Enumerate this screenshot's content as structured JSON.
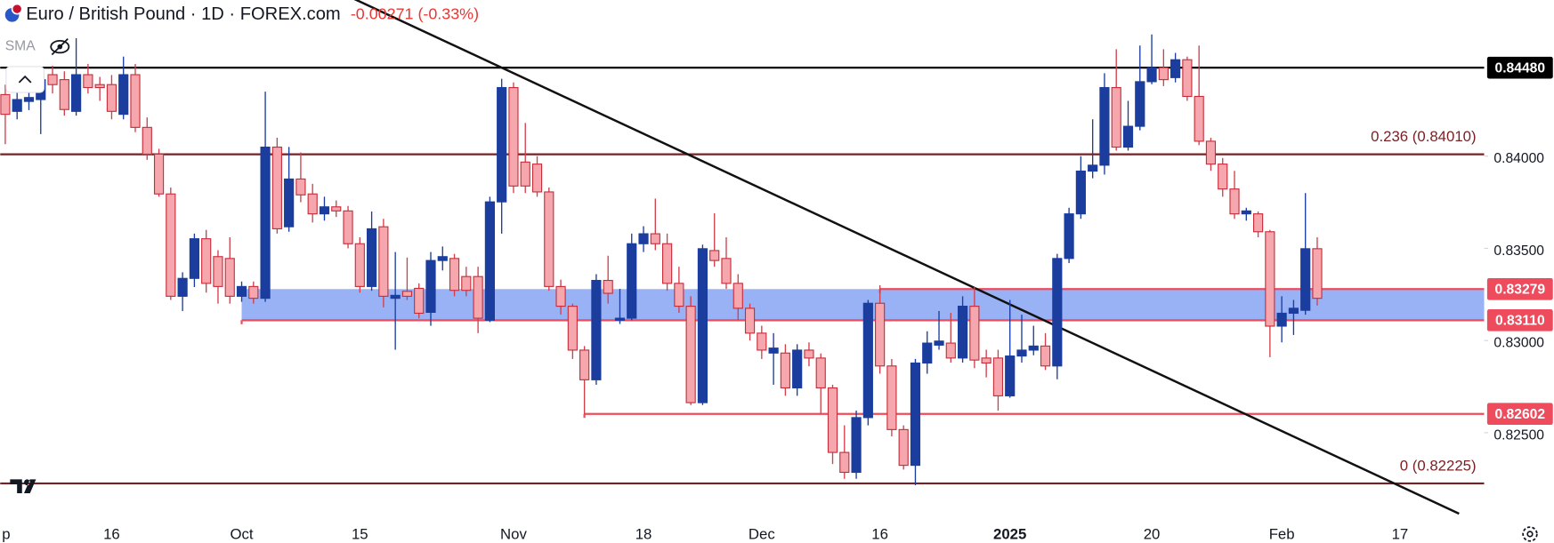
{
  "header": {
    "title": "Euro / British Pound · 1D · FOREX.com",
    "change": "-0.00271 (-0.33%)",
    "indicator": "SMA"
  },
  "chart_data": {
    "type": "candlestick",
    "up_color": "#1a3d9e",
    "down_color": "#f6a7ad",
    "categories": [
      "p",
      null,
      null,
      null,
      null,
      null,
      null,
      null,
      null,
      null,
      "16",
      null,
      null,
      null,
      null,
      null,
      null,
      null,
      null,
      null,
      null,
      "Oct",
      null,
      null,
      null,
      null,
      null,
      null,
      null,
      null,
      null,
      "15",
      null,
      null,
      null,
      null,
      null,
      null,
      null,
      null,
      null,
      null,
      null,
      null,
      "Nov",
      null,
      null,
      null,
      null,
      null,
      null,
      null,
      null,
      null,
      null,
      "18",
      null,
      null,
      null,
      null,
      null,
      null,
      null,
      null,
      null,
      "Dec",
      null,
      null,
      null,
      null,
      null,
      null,
      null,
      null,
      null,
      "16",
      null,
      null,
      null,
      null,
      null,
      null,
      null,
      null,
      null,
      null,
      "2025",
      null,
      null,
      null,
      null,
      null,
      null,
      null,
      null,
      null,
      null,
      null,
      "20",
      null,
      null,
      null,
      null,
      null,
      null,
      null,
      null,
      null,
      null,
      "Feb",
      null,
      null,
      null,
      null,
      null,
      null,
      null,
      null,
      null,
      "17",
      null,
      null,
      null,
      null,
      null,
      null
    ],
    "open": [
      null,
      0.84334,
      0.84243,
      0.84297,
      0.84307,
      0.84442,
      0.84415,
      0.84243,
      0.84442,
      0.84388,
      0.84388,
      0.84227,
      0.84442,
      0.84156,
      0.84011,
      0.83795,
      0.8324,
      0.83337,
      0.83552,
      0.83455,
      0.83445,
      0.8324,
      0.83293,
      0.83229,
      0.84049,
      0.83617,
      0.83876,
      0.83795,
      0.83687,
      0.83725,
      0.83703,
      0.83525,
      0.83293,
      0.83617,
      0.83229,
      0.83267,
      0.83283,
      0.83153,
      0.83434,
      0.83445,
      0.83347,
      0.83347,
      0.8311,
      0.83752,
      0.84372,
      0.83968,
      0.83957,
      0.83806,
      0.83293,
      0.83186,
      0.82948,
      0.82787,
      0.83326,
      0.8311,
      0.83121,
      0.83525,
      0.83579,
      0.83525,
      0.8331,
      0.83186,
      0.82663,
      0.83488,
      0.83445,
      0.8331,
      0.83175,
      0.8304,
      0.82932,
      0.82932,
      0.82743,
      0.82948,
      0.82905,
      0.82743,
      0.82393,
      0.82285,
      0.82582,
      0.83202,
      0.82862,
      0.82517,
      0.82323,
      0.82878,
      0.82975,
      0.82986,
      0.82905,
      0.83186,
      0.82905,
      0.82905,
      0.827,
      0.82916,
      0.82948,
      0.8297,
      0.82862,
      0.83445,
      0.83687,
      0.83919,
      0.83951,
      0.84372,
      0.84049,
      0.84162,
      0.84404,
      0.8448,
      0.84426,
      0.84523,
      0.84324,
      0.84081,
      0.83957,
      0.83822,
      0.83687,
      0.83687,
      0.8359,
      0.83078,
      0.83148,
      0.83164,
      0.83498,
      null,
      null,
      null,
      null,
      null,
      null,
      null,
      null,
      null,
      null,
      null,
      null,
      null
    ],
    "high": [
      null,
      0.84388,
      0.84361,
      0.84372,
      0.8447,
      0.8449,
      0.8446,
      0.8464,
      0.845,
      0.8443,
      0.8444,
      0.8454,
      0.845,
      0.8421,
      0.8404,
      0.8383,
      0.8337,
      0.8358,
      0.836,
      0.8349,
      0.8356,
      0.8332,
      0.8332,
      0.8435,
      0.841,
      0.8405,
      0.8402,
      0.8385,
      0.8378,
      0.8376,
      0.8373,
      0.8356,
      0.837,
      0.8366,
      0.8348,
      0.8345,
      0.8331,
      0.8348,
      0.8351,
      0.8347,
      0.834,
      0.834,
      0.8378,
      0.8442,
      0.844,
      0.8418,
      0.84,
      0.8383,
      0.8333,
      0.832,
      0.8297,
      0.8336,
      0.8346,
      0.8328,
      0.8358,
      0.8362,
      0.8377,
      0.8358,
      0.834,
      0.8324,
      0.8352,
      0.8369,
      0.8356,
      0.8336,
      0.832,
      0.8308,
      0.8304,
      0.8298,
      0.8298,
      0.8299,
      0.8293,
      0.8276,
      0.8254,
      0.8262,
      0.8322,
      0.833,
      0.829,
      0.8254,
      0.829,
      0.8305,
      0.8316,
      0.8315,
      0.8324,
      0.8329,
      0.8295,
      0.8295,
      0.8322,
      0.8314,
      0.8308,
      0.8304,
      0.8347,
      0.8372,
      0.84,
      0.842,
      0.8445,
      0.8458,
      0.843,
      0.846,
      0.8466,
      0.8458,
      0.8456,
      0.8454,
      0.846,
      0.841,
      0.8399,
      0.8392,
      0.8372,
      0.837,
      0.836,
      0.8324,
      0.8322,
      0.838,
      0.8356,
      null,
      null,
      null,
      null,
      null,
      null,
      null,
      null,
      null,
      null,
      null,
      null,
      null
    ],
    "low": [
      null,
      0.84065,
      0.842,
      0.8425,
      0.8412,
      0.8434,
      0.8422,
      0.8422,
      0.8434,
      0.843,
      0.842,
      0.842,
      0.8413,
      0.8398,
      0.8378,
      0.8322,
      0.8316,
      0.8329,
      0.8326,
      0.832,
      0.832,
      0.8321,
      0.832,
      0.8321,
      0.8358,
      0.8359,
      0.8375,
      0.8364,
      0.8365,
      0.8367,
      0.835,
      0.8326,
      0.8327,
      0.8318,
      0.8295,
      0.8322,
      0.8312,
      0.8308,
      0.8338,
      0.8324,
      0.8324,
      0.8304,
      0.831,
      0.8358,
      0.838,
      0.838,
      0.8378,
      0.8327,
      0.8314,
      0.829,
      0.826,
      0.8276,
      0.832,
      0.8309,
      0.8311,
      0.8348,
      0.8349,
      0.8327,
      0.8315,
      0.8265,
      0.8265,
      0.834,
      0.8328,
      0.8311,
      0.83,
      0.829,
      0.8276,
      0.827,
      0.827,
      0.8286,
      0.826,
      0.8233,
      0.8225,
      0.8225,
      0.8254,
      0.8282,
      0.8248,
      0.823,
      0.82215,
      0.8282,
      0.8295,
      0.8288,
      0.8288,
      0.8285,
      0.828,
      0.8262,
      0.8269,
      0.8288,
      0.8292,
      0.8284,
      0.8279,
      0.8342,
      0.8366,
      0.8388,
      0.839,
      0.8403,
      0.8403,
      0.8414,
      0.8439,
      0.8438,
      0.844,
      0.843,
      0.8406,
      0.8392,
      0.8378,
      0.8366,
      0.8365,
      0.8356,
      0.8291,
      0.8299,
      0.8303,
      0.8314,
      0.8319,
      null,
      null,
      null,
      null,
      null,
      null,
      null,
      null,
      null,
      null,
      null,
      null,
      null
    ],
    "close": [
      null,
      0.84227,
      0.84307,
      0.84318,
      0.84415,
      0.84388,
      0.84253,
      0.84442,
      0.84372,
      0.84372,
      0.84243,
      0.84442,
      0.84156,
      0.84011,
      0.83795,
      0.8324,
      0.83337,
      0.83552,
      0.8331,
      0.83293,
      0.8324,
      0.83293,
      0.83229,
      0.84049,
      0.83606,
      0.83876,
      0.8379,
      0.83687,
      0.83725,
      0.83703,
      0.83525,
      0.83293,
      0.83606,
      0.8324,
      0.83245,
      0.8324,
      0.83148,
      0.83434,
      0.83455,
      0.83272,
      0.83272,
      0.83121,
      0.83752,
      0.84372,
      0.83838,
      0.83838,
      0.83806,
      0.83293,
      0.83186,
      0.82948,
      0.82787,
      0.83326,
      0.83256,
      0.83121,
      0.83525,
      0.83579,
      0.83525,
      0.8331,
      0.83186,
      0.82663,
      0.83498,
      0.83434,
      0.8331,
      0.83175,
      0.8304,
      0.82948,
      0.82959,
      0.82743,
      0.82948,
      0.82905,
      0.82743,
      0.82393,
      0.82285,
      0.82582,
      0.83202,
      0.82862,
      0.82517,
      0.82323,
      0.82878,
      0.82986,
      0.82997,
      0.82905,
      0.83186,
      0.82894,
      0.82878,
      0.827,
      0.82916,
      0.82948,
      0.8297,
      0.82862,
      0.83445,
      0.83687,
      0.83919,
      0.83951,
      0.84372,
      0.84049,
      0.84162,
      0.84404,
      0.8448,
      0.84415,
      0.84523,
      0.84324,
      0.84081,
      0.83957,
      0.83822,
      0.83687,
      0.83703,
      0.8359,
      0.83078,
      0.83148,
      0.83175,
      0.83498,
      0.83229,
      null,
      null,
      null,
      null,
      null,
      null,
      null,
      null,
      null,
      null,
      null,
      null,
      null
    ],
    "ylim": [
      0.82015,
      0.84847
    ],
    "yticks": [
      {
        "value": 0.84,
        "label": "0.84000"
      },
      {
        "value": 0.835,
        "label": "0.83500"
      },
      {
        "value": 0.83,
        "label": "0.83000"
      },
      {
        "value": 0.825,
        "label": "0.82500"
      }
    ],
    "zone": {
      "low": 0.8311,
      "high": 0.83279,
      "start": 21,
      "color": "#86a5f3"
    },
    "levels": [
      {
        "value": 0.8448,
        "label": "0.84480",
        "color": "#000000",
        "start": 0
      },
      {
        "value": 0.8401,
        "annotation": "0.236 (0.84010)",
        "color": "#7a1f23",
        "start": 0
      },
      {
        "value": 0.83279,
        "label": "0.83279",
        "color": "#ee4c5c",
        "start": 75
      },
      {
        "value": 0.8311,
        "label": "0.83110",
        "color": "#ee4c5c",
        "start": 21
      },
      {
        "value": 0.82602,
        "label": "0.82602",
        "color": "#ee4c5c",
        "start": 50
      },
      {
        "value": 0.82225,
        "annotation": "0 (0.82225)",
        "color": "#7a1f23",
        "start": 0
      }
    ],
    "trend_line": {
      "x": [
        43,
        124
      ],
      "y": [
        0.8448,
        0.82061
      ],
      "color": "#111111"
    }
  }
}
